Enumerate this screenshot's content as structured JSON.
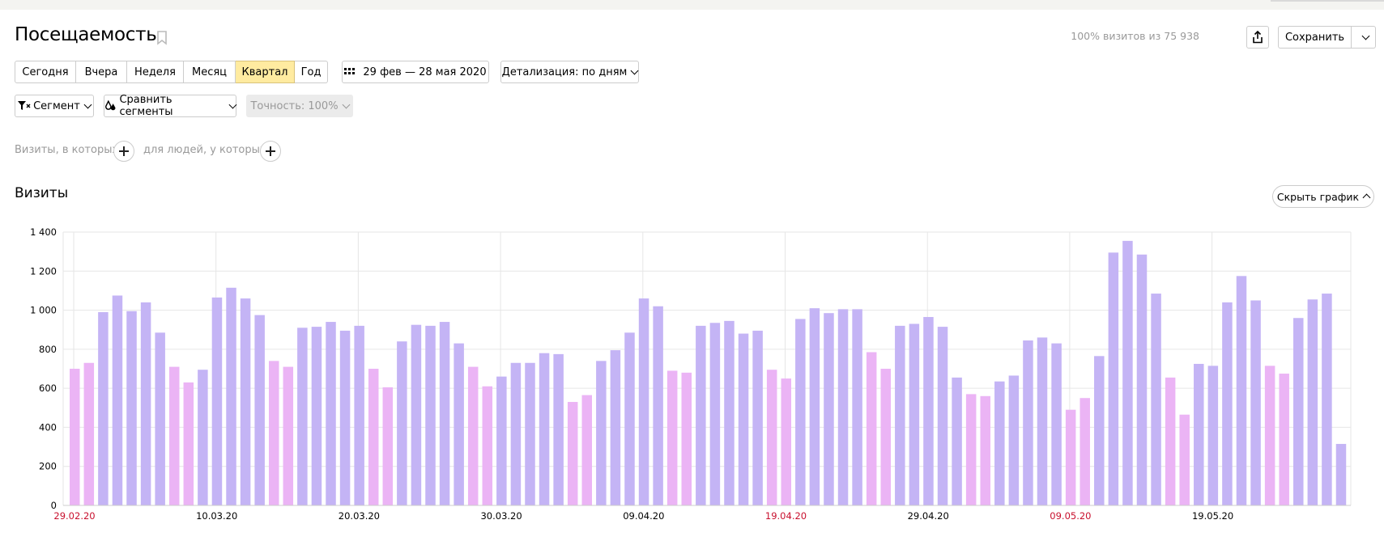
{
  "header": {
    "title": "Посещаемость",
    "visits_info": "100% визитов из 75 938",
    "save_label": "Сохранить",
    "icons": {
      "bookmark": "bookmark-icon",
      "share": "share-icon",
      "chevron": "chevron-down-icon"
    }
  },
  "periods": [
    {
      "label": "Сегодня",
      "active": false
    },
    {
      "label": "Вчера",
      "active": false
    },
    {
      "label": "Неделя",
      "active": false
    },
    {
      "label": "Месяц",
      "active": false
    },
    {
      "label": "Квартал",
      "active": true
    },
    {
      "label": "Год",
      "active": false
    }
  ],
  "daterange": {
    "label": "29 фев — 28 мая 2020",
    "icon": "calendar-grid-icon"
  },
  "detail": {
    "label": "Детализация: по дням"
  },
  "segment": {
    "label": "Сегмент",
    "icon": "filter-icon"
  },
  "compare": {
    "label": "Сравнить сегменты",
    "icon": "drops-icon"
  },
  "accuracy": {
    "label": "Точность: 100%"
  },
  "filters": {
    "visits_where": "Визиты, в которых",
    "people_where": "для людей, у которых"
  },
  "section": {
    "title": "Визиты",
    "hide_chart": "Скрыть график"
  },
  "colors": {
    "weekday": "#c4b4f5",
    "weekend": "#ebb4f5",
    "holiday_label": "#c8102e",
    "active_period": "#ffeba0"
  },
  "chart_data": {
    "type": "bar",
    "ylim": [
      0,
      1400
    ],
    "yticks": [
      "0",
      "200",
      "400",
      "600",
      "800",
      "1 000",
      "1 200",
      "1 400"
    ],
    "xtick_labels": [
      {
        "label": "29.02.20",
        "index": 0,
        "weekend": true
      },
      {
        "label": "10.03.20",
        "index": 10,
        "weekend": false
      },
      {
        "label": "20.03.20",
        "index": 20,
        "weekend": false
      },
      {
        "label": "30.03.20",
        "index": 30,
        "weekend": false
      },
      {
        "label": "09.04.20",
        "index": 40,
        "weekend": false
      },
      {
        "label": "19.04.20",
        "index": 50,
        "weekend": true
      },
      {
        "label": "29.04.20",
        "index": 60,
        "weekend": false
      },
      {
        "label": "09.05.20",
        "index": 70,
        "weekend": true
      },
      {
        "label": "19.05.20",
        "index": 80,
        "weekend": false
      }
    ],
    "series": [
      {
        "values": [
          700,
          730,
          990,
          1075,
          995,
          1040,
          885,
          710,
          630,
          695,
          1065,
          1115,
          1060,
          975,
          740,
          710,
          910,
          915,
          940,
          895,
          920,
          700,
          605,
          840,
          925,
          920,
          940,
          830,
          710,
          610,
          660,
          730,
          730,
          780,
          775,
          530,
          565,
          740,
          795,
          885,
          1060,
          1020,
          690,
          680,
          920,
          935,
          945,
          880,
          895,
          695,
          650,
          955,
          1010,
          985,
          1005,
          1005,
          785,
          700,
          920,
          930,
          965,
          915,
          655,
          570,
          560,
          635,
          665,
          845,
          860,
          830,
          490,
          550,
          765,
          1295,
          1355,
          1285,
          1085,
          655,
          465,
          725,
          715,
          1040,
          1175,
          1050,
          715,
          675,
          960,
          1055,
          1085,
          315
        ],
        "weekend_flags": [
          1,
          1,
          0,
          0,
          0,
          0,
          0,
          1,
          1,
          0,
          0,
          0,
          0,
          0,
          1,
          1,
          0,
          0,
          0,
          0,
          0,
          1,
          1,
          0,
          0,
          0,
          0,
          0,
          1,
          1,
          0,
          0,
          0,
          0,
          0,
          1,
          1,
          0,
          0,
          0,
          0,
          0,
          1,
          1,
          0,
          0,
          0,
          0,
          0,
          1,
          1,
          0,
          0,
          0,
          0,
          0,
          1,
          1,
          0,
          0,
          0,
          0,
          0,
          1,
          1,
          0,
          0,
          0,
          0,
          0,
          1,
          1,
          0,
          0,
          0,
          0,
          0,
          1,
          1,
          0,
          0,
          0,
          0,
          0,
          1,
          1,
          0,
          0,
          0,
          0
        ]
      }
    ]
  }
}
